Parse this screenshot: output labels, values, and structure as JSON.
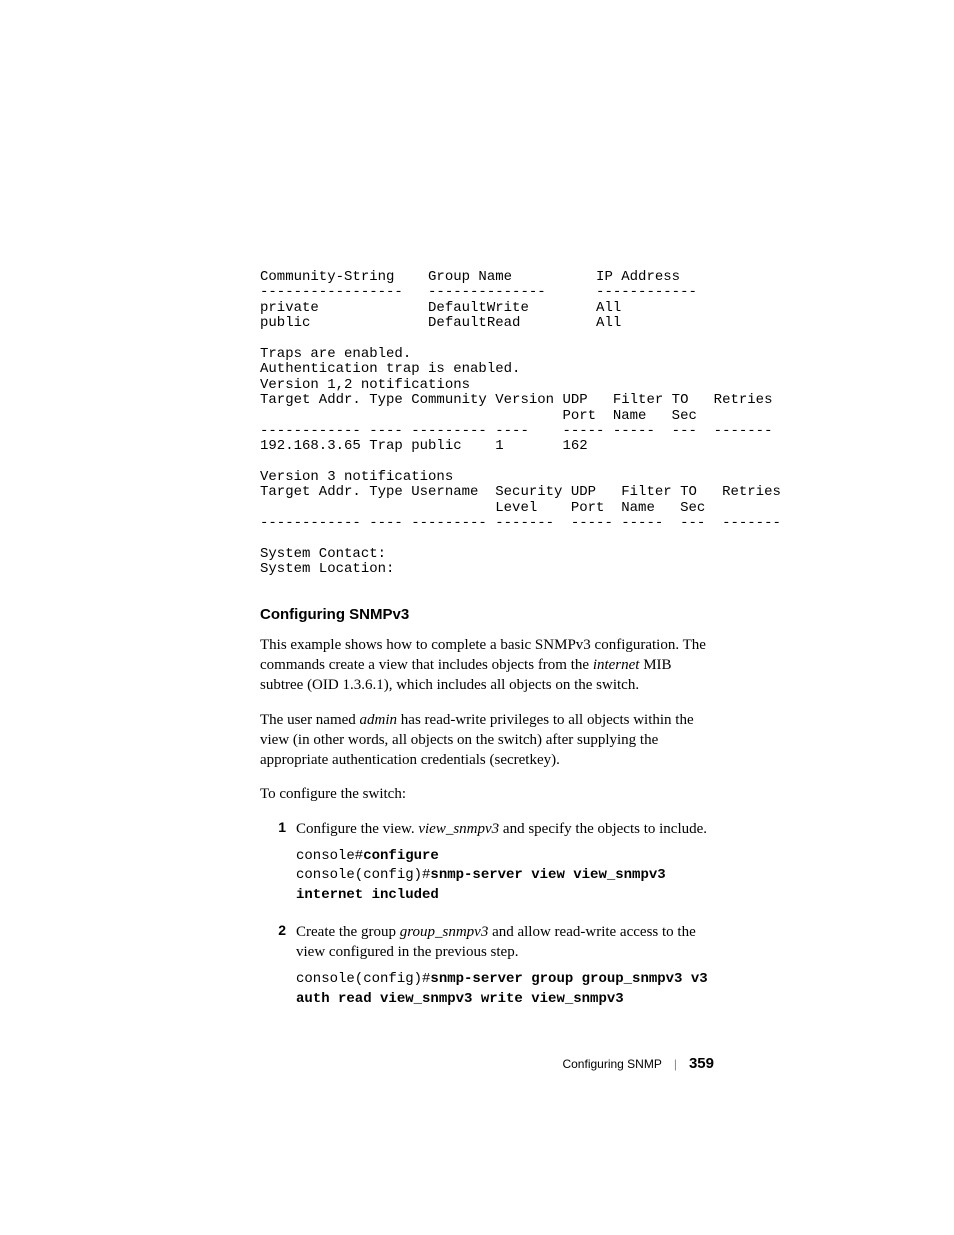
{
  "terminal": {
    "text": "Community-String    Group Name          IP Address\n-----------------   --------------      ------------\nprivate             DefaultWrite        All\npublic              DefaultRead         All\n\nTraps are enabled.\nAuthentication trap is enabled.\nVersion 1,2 notifications\nTarget Addr. Type Community Version UDP   Filter TO   Retries\n                                    Port  Name   Sec\n------------ ---- --------- ----    ----- -----  ---  -------\n192.168.3.65 Trap public    1       162\n\nVersion 3 notifications\nTarget Addr. Type Username  Security UDP   Filter TO   Retries\n                            Level    Port  Name   Sec\n------------ ---- --------- -------  ----- -----  ---  -------\n\nSystem Contact:\nSystem Location:"
  },
  "section": {
    "heading": "Configuring SNMPv3",
    "para1_a": "This example shows how to complete a basic SNMPv3 configuration. The commands create a view that includes objects from the ",
    "para1_italic": "internet",
    "para1_b": " MIB subtree (OID 1.3.6.1), which includes all objects on the switch.",
    "para2_a": "The user named ",
    "para2_italic": "admin",
    "para2_b": " has read-write privileges to all objects within the view (in other words, all objects on the switch) after supplying the appropriate authentication credentials (secretkey).",
    "para3": "To configure the switch:",
    "step1": {
      "num": "1",
      "text_a": "Configure the view. ",
      "text_italic": "view_snmpv3",
      "text_b": " and specify the objects to include.",
      "code_line1_plain": "console#",
      "code_line1_bold": "configure",
      "code_line2_plain": "console(config)#",
      "code_line2_bold": "snmp-server view view_snmpv3 internet included"
    },
    "step2": {
      "num": "2",
      "text_a": "Create the group ",
      "text_italic": "group_snmpv3",
      "text_b": " and allow read-write access to the view configured in the previous step.",
      "code_line1_plain": "console(config)#",
      "code_line1_bold": "snmp-server group group_snmpv3 v3 auth read view_snmpv3 write view_snmpv3"
    }
  },
  "footer": {
    "title": "Configuring SNMP",
    "sep": "|",
    "page": "359"
  }
}
